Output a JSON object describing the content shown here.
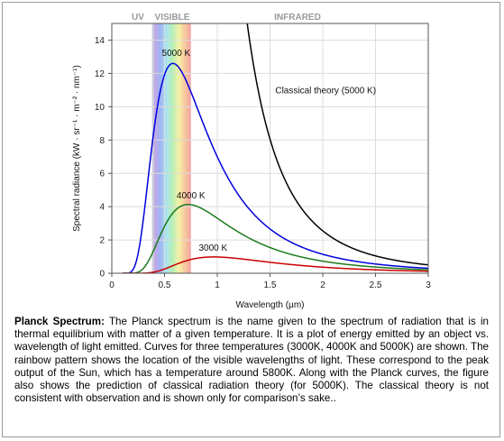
{
  "chart_data": {
    "type": "line",
    "xlabel": "Wavelength (µm)",
    "ylabel": "Spectral radiance (kW · sr⁻¹ · m⁻² · nm⁻¹)",
    "xlim": [
      0,
      3
    ],
    "ylim": [
      0,
      15
    ],
    "x_ticks": [
      "0",
      "0.5",
      "1",
      "1.5",
      "2",
      "2.5",
      "3"
    ],
    "y_ticks": [
      "0",
      "2",
      "4",
      "6",
      "8",
      "10",
      "12",
      "14"
    ],
    "grid": true,
    "bands": [
      {
        "label": "UV",
        "range": [
          0.0,
          0.4
        ]
      },
      {
        "label": "VISIBLE",
        "range": [
          0.4,
          0.75
        ]
      },
      {
        "label": "INFRARED",
        "range": [
          0.75,
          3.0
        ]
      }
    ],
    "series": [
      {
        "name": "5000 K",
        "color": "#0000dd",
        "temperature_K": 5000,
        "model": "planck",
        "peak": {
          "x": 0.58,
          "y": 12.6
        },
        "x": [
          0.2,
          0.3,
          0.4,
          0.5,
          0.58,
          0.7,
          1.0,
          1.5,
          2.0,
          2.5,
          3.0
        ],
        "y": [
          0.04,
          1.9,
          7.7,
          12.0,
          12.6,
          11.3,
          6.1,
          2.1,
          0.86,
          0.41,
          0.22
        ]
      },
      {
        "name": "4000 K",
        "color": "#1c7a1c",
        "temperature_K": 4000,
        "model": "planck",
        "peak": {
          "x": 0.72,
          "y": 4.1
        },
        "x": [
          0.25,
          0.4,
          0.5,
          0.6,
          0.72,
          1.0,
          1.5,
          2.0,
          2.5,
          3.0
        ],
        "y": [
          0.05,
          1.1,
          2.6,
          3.7,
          4.1,
          3.1,
          1.3,
          0.6,
          0.3,
          0.17
        ]
      },
      {
        "name": "3000 K",
        "color": "#cc0000",
        "temperature_K": 3000,
        "model": "planck",
        "peak": {
          "x": 0.97,
          "y": 1.0
        },
        "x": [
          0.3,
          0.5,
          0.7,
          0.97,
          1.5,
          2.0,
          2.5,
          3.0
        ],
        "y": [
          0.0,
          0.2,
          0.7,
          1.0,
          0.7,
          0.4,
          0.22,
          0.13
        ]
      },
      {
        "name": "Classical theory (5000 K)",
        "color": "#000000",
        "temperature_K": 5000,
        "model": "rayleigh-jeans",
        "x": [
          1.3,
          1.5,
          2.0,
          2.5,
          3.0
        ],
        "y": [
          14.8,
          8.4,
          2.65,
          1.08,
          0.52
        ]
      }
    ]
  },
  "caption": {
    "title": "Planck Spectrum:",
    "text": "The Planck spectrum is the name given to the spectrum of radiation that is in thermal equilibrium with matter of a given temperature. It is a plot of energy emitted by an object vs. wavelength of light emitted. Curves for three temperatures (3000K, 4000K and 5000K) are shown. The rainbow pattern shows the location of the visible wavelengths of light. These correspond to the peak output of the Sun, which has a temperature around 5800K. Along with the Planck curves, the figure also shows the prediction of classical radiation theory (for 5000K). The classical theory is not consistent with observation and is shown only for comparison’s sake.."
  }
}
